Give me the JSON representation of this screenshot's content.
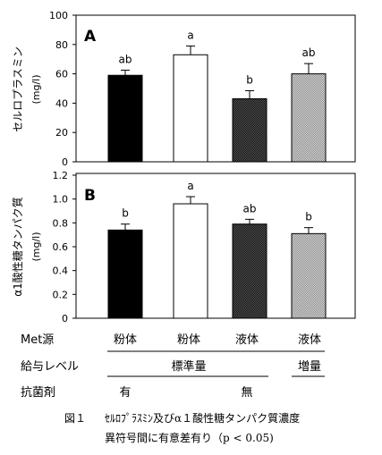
{
  "chart_data": [
    {
      "type": "bar",
      "panel_label": "A",
      "ylabel": "セルロプラスミン",
      "yunit": "(mg/l)",
      "ylim": [
        0,
        100
      ],
      "yticks": [
        "0",
        "20",
        "40",
        "60",
        "80",
        "100"
      ],
      "values": [
        59,
        73,
        43,
        60
      ],
      "errors": [
        3.5,
        6,
        5.5,
        7
      ],
      "letters": [
        "ab",
        "a",
        "b",
        "ab"
      ],
      "fills": [
        "#000000",
        "#ffffff",
        "#3a3a3a",
        "#b4b4b4"
      ]
    },
    {
      "type": "bar",
      "panel_label": "B",
      "ylabel": "α1酸性糖タンパク質",
      "yunit": "(mg/l)",
      "ylim": [
        0,
        1.2
      ],
      "yticks": [
        "0",
        "0.2",
        "0.4",
        "0.6",
        "0.8",
        "1.0",
        "1.2"
      ],
      "values": [
        0.74,
        0.96,
        0.79,
        0.71
      ],
      "errors": [
        0.05,
        0.06,
        0.04,
        0.05
      ],
      "letters": [
        "b",
        "a",
        "ab",
        "b"
      ],
      "fills": [
        "#000000",
        "#ffffff",
        "#3a3a3a",
        "#b4b4b4"
      ]
    }
  ],
  "table": {
    "row1": {
      "label": "Met源",
      "values": [
        "粉体",
        "粉体",
        "液体",
        "液体"
      ]
    },
    "row2": {
      "label": "給与レベル",
      "group1": "標準量",
      "group2": "増量"
    },
    "row3": {
      "label": "抗菌剤",
      "group1": "有",
      "group2": "無"
    }
  },
  "caption": {
    "line1_prefix": "図１",
    "line1_text": "ｾﾙﾛﾌﾟﾗｽﾐﾝ及びα１酸性糖タンパク質濃度",
    "line2": "異符号間に有意差有り（p < 0.05)"
  }
}
